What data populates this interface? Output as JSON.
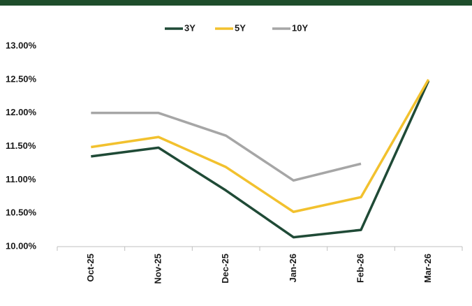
{
  "chart_data": {
    "type": "line",
    "categories": [
      "Oct-25",
      "Nov-25",
      "Dec-25",
      "Jan-26",
      "Feb-26",
      "Mar-26"
    ],
    "series": [
      {
        "name": "3Y",
        "color": "#1f4a36",
        "values": [
          11.35,
          11.48,
          10.84,
          10.14,
          10.25,
          12.48
        ]
      },
      {
        "name": "5Y",
        "color": "#f2c12e",
        "values": [
          11.49,
          11.64,
          11.19,
          10.52,
          10.74,
          12.5
        ]
      },
      {
        "name": "10Y",
        "color": "#a6a6a6",
        "values": [
          12.0,
          12.0,
          11.66,
          10.99,
          11.24,
          null
        ]
      }
    ],
    "ylim": [
      10,
      13
    ],
    "yticks": [
      {
        "value": 10,
        "label": "10.00%"
      },
      {
        "value": 10.5,
        "label": "10.50%"
      },
      {
        "value": 11,
        "label": "11.00%"
      },
      {
        "value": 11.5,
        "label": "11.50%"
      },
      {
        "value": 12,
        "label": "12.00%"
      },
      {
        "value": 12.5,
        "label": "12.50%"
      },
      {
        "value": 13,
        "label": "13.00%"
      }
    ],
    "grid": false,
    "legend": "top"
  }
}
